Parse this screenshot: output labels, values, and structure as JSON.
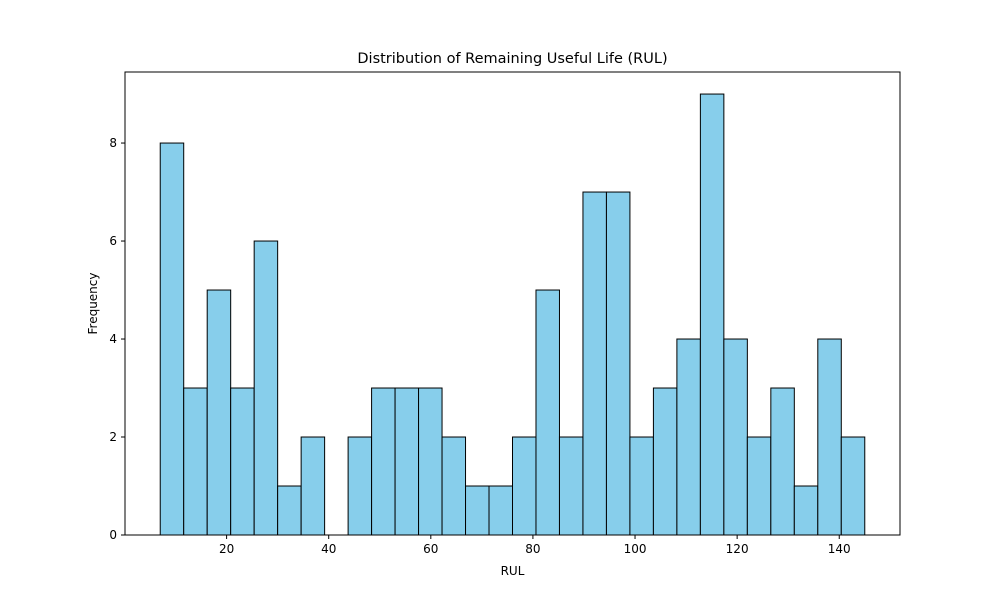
{
  "chart_data": {
    "type": "bar",
    "title": "Distribution of Remaining Useful Life (RUL)",
    "xlabel": "RUL",
    "ylabel": "Frequency",
    "xlim": [
      0.1,
      151.9
    ],
    "ylim": [
      0,
      9.45
    ],
    "xticks": [
      20,
      40,
      60,
      80,
      100,
      120,
      140
    ],
    "yticks": [
      0,
      2,
      4,
      6,
      8
    ],
    "bin_edges": [
      7,
      11.6,
      16.2,
      20.8,
      25.4,
      30,
      34.6,
      39.2,
      43.8,
      48.4,
      53,
      57.6,
      62.2,
      66.8,
      71.4,
      76,
      80.6,
      85.2,
      89.8,
      94.4,
      99,
      103.6,
      108.2,
      112.8,
      117.4,
      122,
      126.6,
      131.2,
      135.8,
      140.4,
      145
    ],
    "counts": [
      8,
      3,
      5,
      3,
      6,
      1,
      2,
      0,
      2,
      3,
      3,
      3,
      2,
      1,
      1,
      2,
      5,
      2,
      7,
      7,
      2,
      3,
      4,
      9,
      4,
      2,
      3,
      1,
      4,
      2
    ],
    "grid": false,
    "colors": {
      "bar_fill": "#87ceeb",
      "bar_edge": "#000000"
    }
  }
}
